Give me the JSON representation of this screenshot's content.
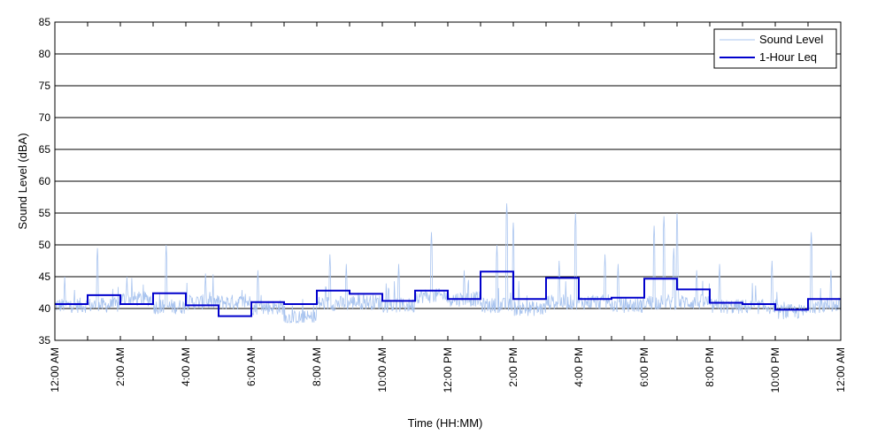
{
  "chart_data": {
    "type": "line",
    "title": "",
    "xlabel": "Time (HH:MM)",
    "ylabel": "Sound Level (dBA)",
    "ylim": [
      35,
      85
    ],
    "yticks": [
      35,
      40,
      45,
      50,
      55,
      60,
      65,
      70,
      75,
      80,
      85
    ],
    "xlim_hours": [
      0,
      24
    ],
    "xtick_hours": [
      0,
      2,
      4,
      6,
      8,
      10,
      12,
      14,
      16,
      18,
      20,
      22,
      24
    ],
    "xtick_labels": [
      "12:00 AM",
      "2:00 AM",
      "4:00 AM",
      "6:00 AM",
      "8:00 AM",
      "10:00 AM",
      "12:00 PM",
      "2:00 PM",
      "4:00 PM",
      "6:00 PM",
      "8:00 PM",
      "10:00 PM",
      "12:00 AM"
    ],
    "grid": "horizontal",
    "legend_position": "top-right",
    "series": [
      {
        "name": "Sound Level",
        "color": "#a9c4ef",
        "style": "thin-line",
        "hour_baseline": [
          40.5,
          40.5,
          41.5,
          40.3,
          41.0,
          41.0,
          40.2,
          38.5,
          40.8,
          41.0,
          40.5,
          42.0,
          41.5,
          40.5,
          40.0,
          41.0,
          41.0,
          40.5,
          41.0,
          41.0,
          40.3,
          40.3,
          39.5,
          40.5
        ],
        "peaks": [
          {
            "hour": 0.3,
            "value": 45.0
          },
          {
            "hour": 1.3,
            "value": 49.5
          },
          {
            "hour": 2.2,
            "value": 45.0
          },
          {
            "hour": 3.4,
            "value": 50.0
          },
          {
            "hour": 4.6,
            "value": 45.5
          },
          {
            "hour": 6.2,
            "value": 46.0
          },
          {
            "hour": 8.4,
            "value": 48.5
          },
          {
            "hour": 8.9,
            "value": 47.0
          },
          {
            "hour": 10.5,
            "value": 47.0
          },
          {
            "hour": 11.5,
            "value": 52.0
          },
          {
            "hour": 12.5,
            "value": 46.0
          },
          {
            "hour": 13.5,
            "value": 50.0
          },
          {
            "hour": 13.8,
            "value": 56.5
          },
          {
            "hour": 14.0,
            "value": 53.5
          },
          {
            "hour": 15.4,
            "value": 47.5
          },
          {
            "hour": 15.9,
            "value": 55.0
          },
          {
            "hour": 16.8,
            "value": 48.5
          },
          {
            "hour": 17.2,
            "value": 47.0
          },
          {
            "hour": 18.3,
            "value": 53.0
          },
          {
            "hour": 18.6,
            "value": 54.5
          },
          {
            "hour": 18.9,
            "value": 49.5
          },
          {
            "hour": 19.0,
            "value": 55.0
          },
          {
            "hour": 19.6,
            "value": 46.0
          },
          {
            "hour": 20.3,
            "value": 47.0
          },
          {
            "hour": 21.9,
            "value": 47.5
          },
          {
            "hour": 23.1,
            "value": 52.0
          },
          {
            "hour": 23.7,
            "value": 46.0
          }
        ]
      },
      {
        "name": "1-Hour Leq",
        "color": "#0000cc",
        "style": "step",
        "values": [
          40.7,
          42.1,
          40.7,
          42.4,
          40.5,
          38.8,
          41.0,
          40.7,
          42.8,
          42.3,
          41.2,
          42.8,
          41.5,
          45.8,
          41.5,
          44.8,
          41.5,
          41.7,
          44.7,
          43.0,
          40.9,
          40.7,
          39.8,
          41.5
        ]
      }
    ]
  }
}
